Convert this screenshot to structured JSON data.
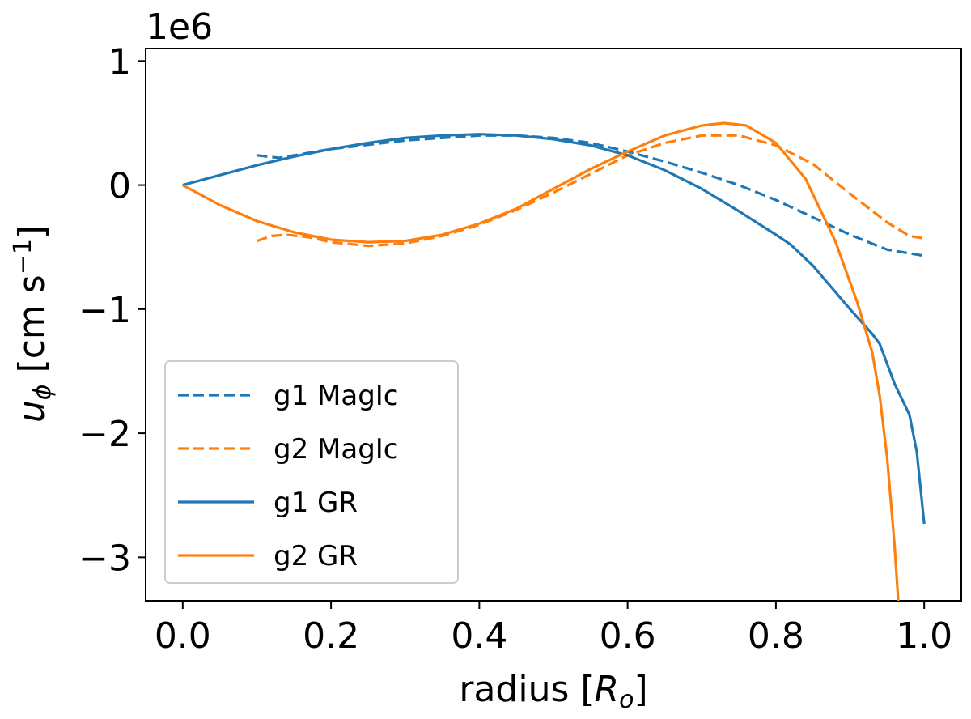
{
  "chart_data": {
    "type": "line",
    "multiplier_label": "1e6",
    "xlabel": {
      "main": "radius [",
      "var": "R",
      "sub": "o",
      "end": "]"
    },
    "ylabel": {
      "var": "u",
      "sub": "ϕ",
      "rest": " [cm s",
      "sup": "−1",
      "end": "]"
    },
    "xlim": [
      -0.05,
      1.05
    ],
    "ylim": [
      -3.35,
      1.1
    ],
    "x_ticks": [
      0.0,
      0.2,
      0.4,
      0.6,
      0.8,
      1.0
    ],
    "x_tick_labels": [
      "0.0",
      "0.2",
      "0.4",
      "0.6",
      "0.8",
      "1.0"
    ],
    "y_ticks": [
      1,
      0,
      -1,
      -2,
      -3
    ],
    "y_tick_labels": [
      "1",
      "0",
      "−1",
      "−2",
      "−3"
    ],
    "grid": false,
    "legend_position": "lower-left",
    "series": [
      {
        "name": "g1 MagIc",
        "color": "#1f77b4",
        "dash": true,
        "x": [
          0.1,
          0.13,
          0.16,
          0.2,
          0.3,
          0.4,
          0.45,
          0.5,
          0.55,
          0.6,
          0.65,
          0.7,
          0.75,
          0.8,
          0.85,
          0.9,
          0.95,
          1.0
        ],
        "y": [
          0.24,
          0.22,
          0.25,
          0.29,
          0.36,
          0.4,
          0.4,
          0.38,
          0.34,
          0.27,
          0.19,
          0.1,
          0.0,
          -0.12,
          -0.26,
          -0.4,
          -0.52,
          -0.57
        ]
      },
      {
        "name": "g2 MagIc",
        "color": "#ff7f0e",
        "dash": true,
        "x": [
          0.1,
          0.12,
          0.14,
          0.17,
          0.2,
          0.25,
          0.3,
          0.35,
          0.4,
          0.45,
          0.5,
          0.55,
          0.6,
          0.65,
          0.7,
          0.75,
          0.8,
          0.85,
          0.9,
          0.95,
          0.98,
          1.0
        ],
        "y": [
          -0.45,
          -0.41,
          -0.4,
          -0.42,
          -0.46,
          -0.49,
          -0.47,
          -0.41,
          -0.32,
          -0.2,
          -0.06,
          0.09,
          0.24,
          0.34,
          0.4,
          0.4,
          0.32,
          0.17,
          -0.07,
          -0.3,
          -0.41,
          -0.43
        ]
      },
      {
        "name": "g1 GR",
        "color": "#1f77b4",
        "dash": false,
        "x": [
          0.0,
          0.05,
          0.1,
          0.15,
          0.2,
          0.25,
          0.3,
          0.35,
          0.4,
          0.45,
          0.5,
          0.55,
          0.6,
          0.65,
          0.7,
          0.75,
          0.8,
          0.82,
          0.85,
          0.9,
          0.93,
          0.94,
          0.96,
          0.98,
          0.99,
          1.0
        ],
        "y": [
          0.0,
          0.08,
          0.16,
          0.23,
          0.29,
          0.34,
          0.38,
          0.4,
          0.41,
          0.4,
          0.37,
          0.32,
          0.24,
          0.12,
          -0.03,
          -0.21,
          -0.4,
          -0.48,
          -0.65,
          -1.0,
          -1.2,
          -1.28,
          -1.6,
          -1.85,
          -2.15,
          -2.73
        ]
      },
      {
        "name": "g2 GR",
        "color": "#ff7f0e",
        "dash": false,
        "x": [
          0.0,
          0.05,
          0.1,
          0.15,
          0.2,
          0.25,
          0.3,
          0.35,
          0.4,
          0.45,
          0.5,
          0.55,
          0.6,
          0.65,
          0.7,
          0.73,
          0.76,
          0.8,
          0.84,
          0.88,
          0.91,
          0.93,
          0.94,
          0.95,
          0.96,
          0.965
        ],
        "y": [
          0.0,
          -0.16,
          -0.29,
          -0.38,
          -0.44,
          -0.46,
          -0.45,
          -0.4,
          -0.31,
          -0.19,
          -0.03,
          0.13,
          0.27,
          0.4,
          0.48,
          0.5,
          0.48,
          0.34,
          0.05,
          -0.45,
          -0.95,
          -1.35,
          -1.7,
          -2.2,
          -2.9,
          -3.35
        ]
      }
    ]
  }
}
